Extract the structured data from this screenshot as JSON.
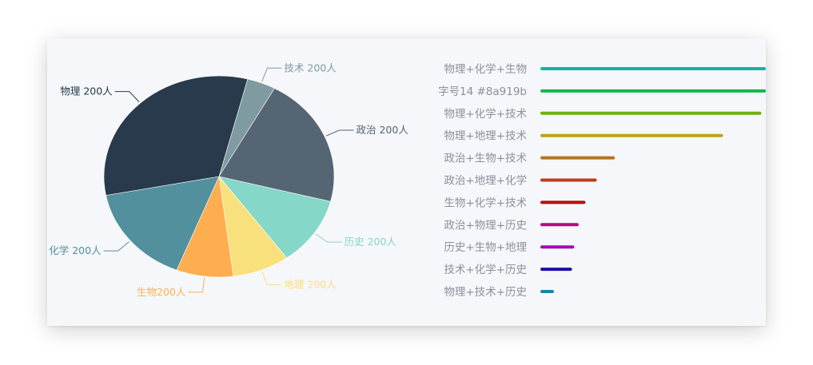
{
  "chart_data": [
    {
      "type": "pie",
      "slices": [
        {
          "label": "技术 200人",
          "value": 4,
          "color": "#7f9aa0"
        },
        {
          "label": "政治 200人",
          "value": 21,
          "color": "#566573"
        },
        {
          "label": "历史 200人",
          "value": 11,
          "color": "#85d7c8"
        },
        {
          "label": "地理 200人",
          "value": 8,
          "color": "#f8e07c"
        },
        {
          "label": "生物200人",
          "value": 8,
          "color": "#ffae4f"
        },
        {
          "label": "化学 200人",
          "value": 16,
          "color": "#52909e"
        },
        {
          "label": "物理 200人",
          "value": 32,
          "color": "#283a4c"
        }
      ]
    },
    {
      "type": "bar",
      "orientation": "horizontal",
      "xlim": [
        0,
        100
      ],
      "categories": [
        "物理+化学+生物",
        "字号14 #8a919b",
        "物理+化学+技术",
        "物理+地理+技术",
        "政治+生物+技术",
        "政治+地理+化学",
        "生物+化学+技术",
        "政治+物理+历史",
        "历史+生物+地理",
        "技术+化学+历史",
        "物理+技术+历史"
      ],
      "values": [
        100,
        100,
        98,
        81,
        33,
        25,
        20,
        17,
        15,
        14,
        6
      ],
      "colors": [
        "#16b39d",
        "#12b84e",
        "#6fb20f",
        "#bfa315",
        "#b8731a",
        "#b8401c",
        "#b50e0e",
        "#b00f7c",
        "#a00fb5",
        "#1c0fa3",
        "#0f8aa3"
      ]
    }
  ],
  "colors": {
    "card_background": "#f5f7fa",
    "category_text": "#8a919b"
  }
}
